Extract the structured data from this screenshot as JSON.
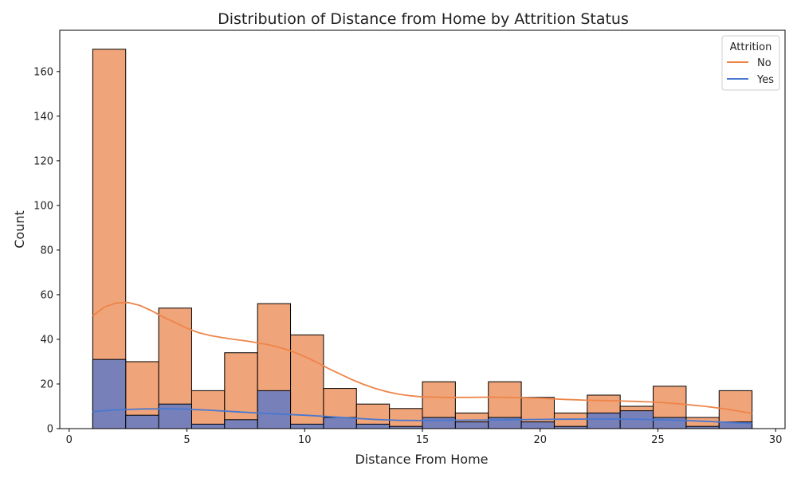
{
  "chart_data": {
    "type": "histogram",
    "title": "Distribution of Distance from Home by Attrition Status",
    "xlabel": "Distance From Home",
    "ylabel": "Count",
    "xlim": [
      -0.4,
      30.4
    ],
    "ylim": [
      0,
      178.5
    ],
    "xticks": [
      0,
      5,
      10,
      15,
      20,
      25,
      30
    ],
    "yticks": [
      0,
      20,
      40,
      60,
      80,
      100,
      120,
      140,
      160
    ],
    "bin_edges": [
      1.0,
      2.4,
      3.8,
      5.2,
      6.6,
      8.0,
      9.4,
      10.8,
      12.2,
      13.6,
      15.0,
      16.4,
      17.8,
      19.2,
      20.6,
      22.0,
      23.4,
      24.8,
      26.2,
      27.6,
      29.0
    ],
    "legend": {
      "title": "Attrition",
      "position": "top-right"
    },
    "series": [
      {
        "name": "No",
        "color": "#f0a479",
        "kde_color": "#ee854a",
        "values": [
          170,
          30,
          54,
          17,
          34,
          56,
          42,
          18,
          11,
          9,
          21,
          7,
          21,
          14,
          7,
          15,
          10,
          19,
          5,
          17
        ],
        "kde": [
          [
            1,
            50.5
          ],
          [
            1.5,
            54.5
          ],
          [
            2,
            56.3
          ],
          [
            2.5,
            56.5
          ],
          [
            3,
            55.2
          ],
          [
            3.5,
            52.8
          ],
          [
            4,
            50
          ],
          [
            4.5,
            47.5
          ],
          [
            5,
            45
          ],
          [
            5.5,
            43
          ],
          [
            6,
            41.7
          ],
          [
            6.5,
            40.8
          ],
          [
            7,
            40
          ],
          [
            7.5,
            39.3
          ],
          [
            8,
            38.5
          ],
          [
            8.5,
            37.5
          ],
          [
            9,
            36.2
          ],
          [
            9.5,
            34.5
          ],
          [
            10,
            32.3
          ],
          [
            10.5,
            29.8
          ],
          [
            11,
            27
          ],
          [
            11.5,
            24.5
          ],
          [
            12,
            22
          ],
          [
            12.5,
            19.8
          ],
          [
            13,
            18
          ],
          [
            13.5,
            16.5
          ],
          [
            14,
            15.4
          ],
          [
            14.5,
            14.7
          ],
          [
            15,
            14.2
          ],
          [
            16,
            14
          ],
          [
            17,
            14
          ],
          [
            18,
            14.1
          ],
          [
            19,
            13.9
          ],
          [
            20,
            13.6
          ],
          [
            21,
            13.1
          ],
          [
            22,
            12.7
          ],
          [
            23,
            12.5
          ],
          [
            24,
            12.2
          ],
          [
            25,
            11.8
          ],
          [
            26,
            11
          ],
          [
            27,
            10
          ],
          [
            28,
            8.6
          ],
          [
            29,
            6.8
          ]
        ]
      },
      {
        "name": "Yes",
        "color": "#7780b9",
        "kde_color": "#4878d0",
        "values": [
          31,
          6,
          11,
          2,
          4,
          17,
          2,
          5,
          2,
          1,
          5,
          3,
          5,
          3,
          1,
          7,
          8,
          5,
          1,
          3
        ],
        "kde": [
          [
            1,
            7.6
          ],
          [
            2,
            8.4
          ],
          [
            3,
            8.8
          ],
          [
            4,
            8.9
          ],
          [
            5,
            8.7
          ],
          [
            6,
            8.2
          ],
          [
            7,
            7.6
          ],
          [
            8,
            7
          ],
          [
            9,
            6.5
          ],
          [
            10,
            6
          ],
          [
            11,
            5.4
          ],
          [
            12,
            4.7
          ],
          [
            13,
            4.1
          ],
          [
            14,
            3.7
          ],
          [
            15,
            3.6
          ],
          [
            16,
            3.7
          ],
          [
            17,
            3.8
          ],
          [
            18,
            3.9
          ],
          [
            19,
            4
          ],
          [
            20,
            4.1
          ],
          [
            21,
            4.2
          ],
          [
            22,
            4.3
          ],
          [
            23,
            4.3
          ],
          [
            24,
            4.2
          ],
          [
            25,
            4
          ],
          [
            26,
            3.7
          ],
          [
            27,
            3.3
          ],
          [
            28,
            2.8
          ],
          [
            29,
            2.3
          ]
        ]
      }
    ]
  }
}
